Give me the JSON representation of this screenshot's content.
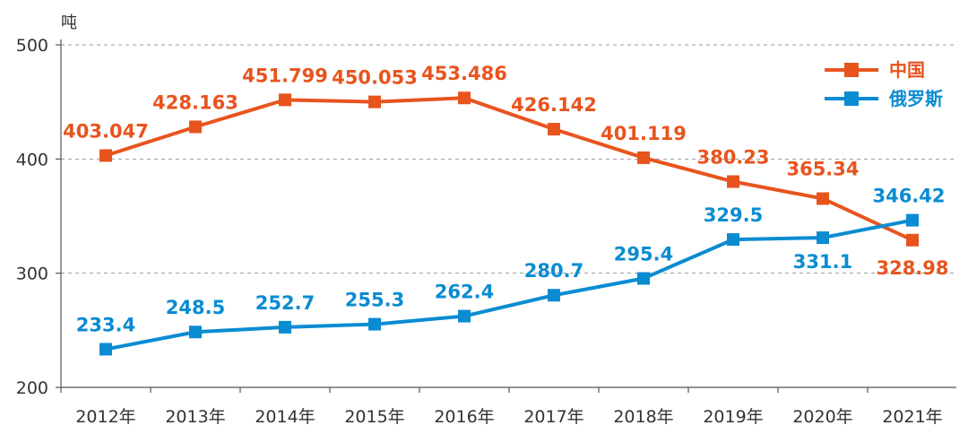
{
  "chart_data": {
    "type": "line",
    "title": "",
    "xlabel": "",
    "ylabel": "吨",
    "ylim": [
      200,
      500
    ],
    "yticks": [
      200,
      300,
      400,
      500
    ],
    "grid": "horizontal-dashed",
    "legend_position": "top-right",
    "categories": [
      "2012年",
      "2013年",
      "2014年",
      "2015年",
      "2016年",
      "2017年",
      "2018年",
      "2019年",
      "2020年",
      "2021年"
    ],
    "series": [
      {
        "name": "中国",
        "color": "#E8541E",
        "marker": "square",
        "values": [
          403.047,
          428.163,
          451.799,
          450.053,
          453.486,
          426.142,
          401.119,
          380.23,
          365.34,
          328.98
        ],
        "labels": [
          "403.047",
          "428.163",
          "451.799",
          "450.053",
          "453.486",
          "426.142",
          "401.119",
          "380.23",
          "365.34",
          "328.98"
        ]
      },
      {
        "name": "俄罗斯",
        "color": "#0A8CD2",
        "marker": "square",
        "values": [
          233.4,
          248.5,
          252.7,
          255.3,
          262.4,
          280.7,
          295.4,
          329.5,
          331.1,
          346.42
        ],
        "labels": [
          "233.4",
          "248.5",
          "252.7",
          "255.3",
          "262.4",
          "280.7",
          "295.4",
          "329.5",
          "331.1",
          "346.42"
        ]
      }
    ]
  }
}
